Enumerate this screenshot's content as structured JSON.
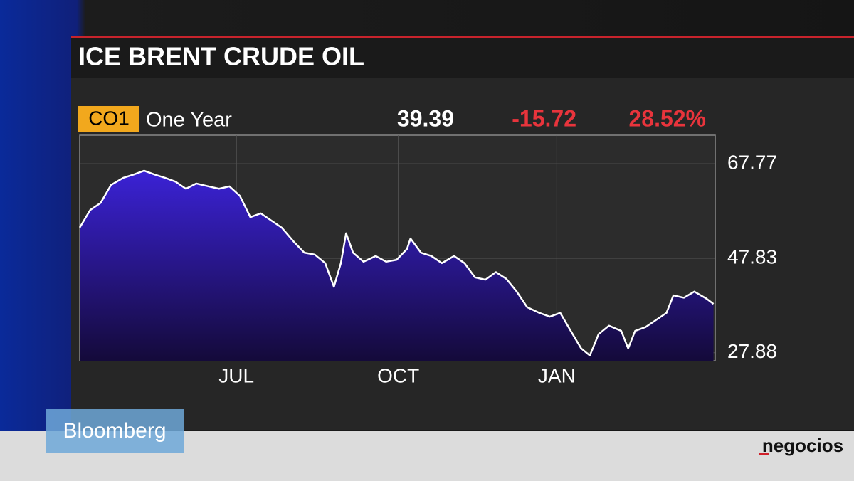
{
  "chart_data": {
    "type": "area",
    "title": "ICE BRENT CRUDE OIL",
    "ticker": "CO1",
    "period": "One Year",
    "last": "39.39",
    "change": "-15.72",
    "change_pct": "28.52%",
    "x": [
      0,
      6,
      12,
      18,
      25,
      31,
      37,
      43,
      49,
      55,
      61,
      67,
      74,
      80,
      86,
      92,
      98,
      104,
      110,
      116,
      123,
      129,
      135,
      141,
      146,
      150,
      153,
      157,
      163,
      170,
      176,
      182,
      188,
      190,
      196,
      202,
      208,
      215,
      221,
      227,
      233,
      239,
      245,
      251,
      257,
      264,
      270,
      276,
      282,
      288,
      293,
      298,
      304,
      311,
      315,
      319,
      325,
      331,
      337,
      341,
      347,
      353,
      360,
      364
    ],
    "values": [
      54.3,
      58.0,
      59.5,
      63.3,
      64.8,
      65.5,
      66.3,
      65.5,
      64.8,
      64.0,
      62.5,
      63.6,
      63.0,
      62.5,
      63.0,
      61.0,
      56.5,
      57.3,
      55.8,
      54.3,
      51.3,
      49.0,
      48.6,
      46.8,
      41.8,
      46.8,
      53.1,
      49.0,
      47.1,
      48.3,
      47.1,
      47.5,
      49.8,
      52.0,
      49.0,
      48.3,
      46.8,
      48.3,
      46.8,
      43.8,
      43.3,
      44.9,
      43.5,
      40.8,
      37.5,
      36.3,
      35.5,
      36.3,
      32.5,
      28.8,
      27.3,
      31.8,
      33.6,
      32.5,
      28.8,
      32.5,
      33.3,
      34.8,
      36.3,
      40.0,
      39.5,
      40.8,
      39.3,
      38.2
    ],
    "color": "#ffffff",
    "fill_top": "#3b22d6",
    "fill_bottom": "#140a3a",
    "xlim": [
      0,
      365
    ],
    "xticks": [
      {
        "value": 90,
        "label": "JUL"
      },
      {
        "value": 183,
        "label": "OCT"
      },
      {
        "value": 274,
        "label": "JAN"
      }
    ],
    "ylim": [
      26.2,
      73.8
    ],
    "yticks": [
      27.88,
      47.83,
      67.77
    ],
    "grid": true
  },
  "broadcaster": "Bloomberg",
  "publisher": "negocios"
}
